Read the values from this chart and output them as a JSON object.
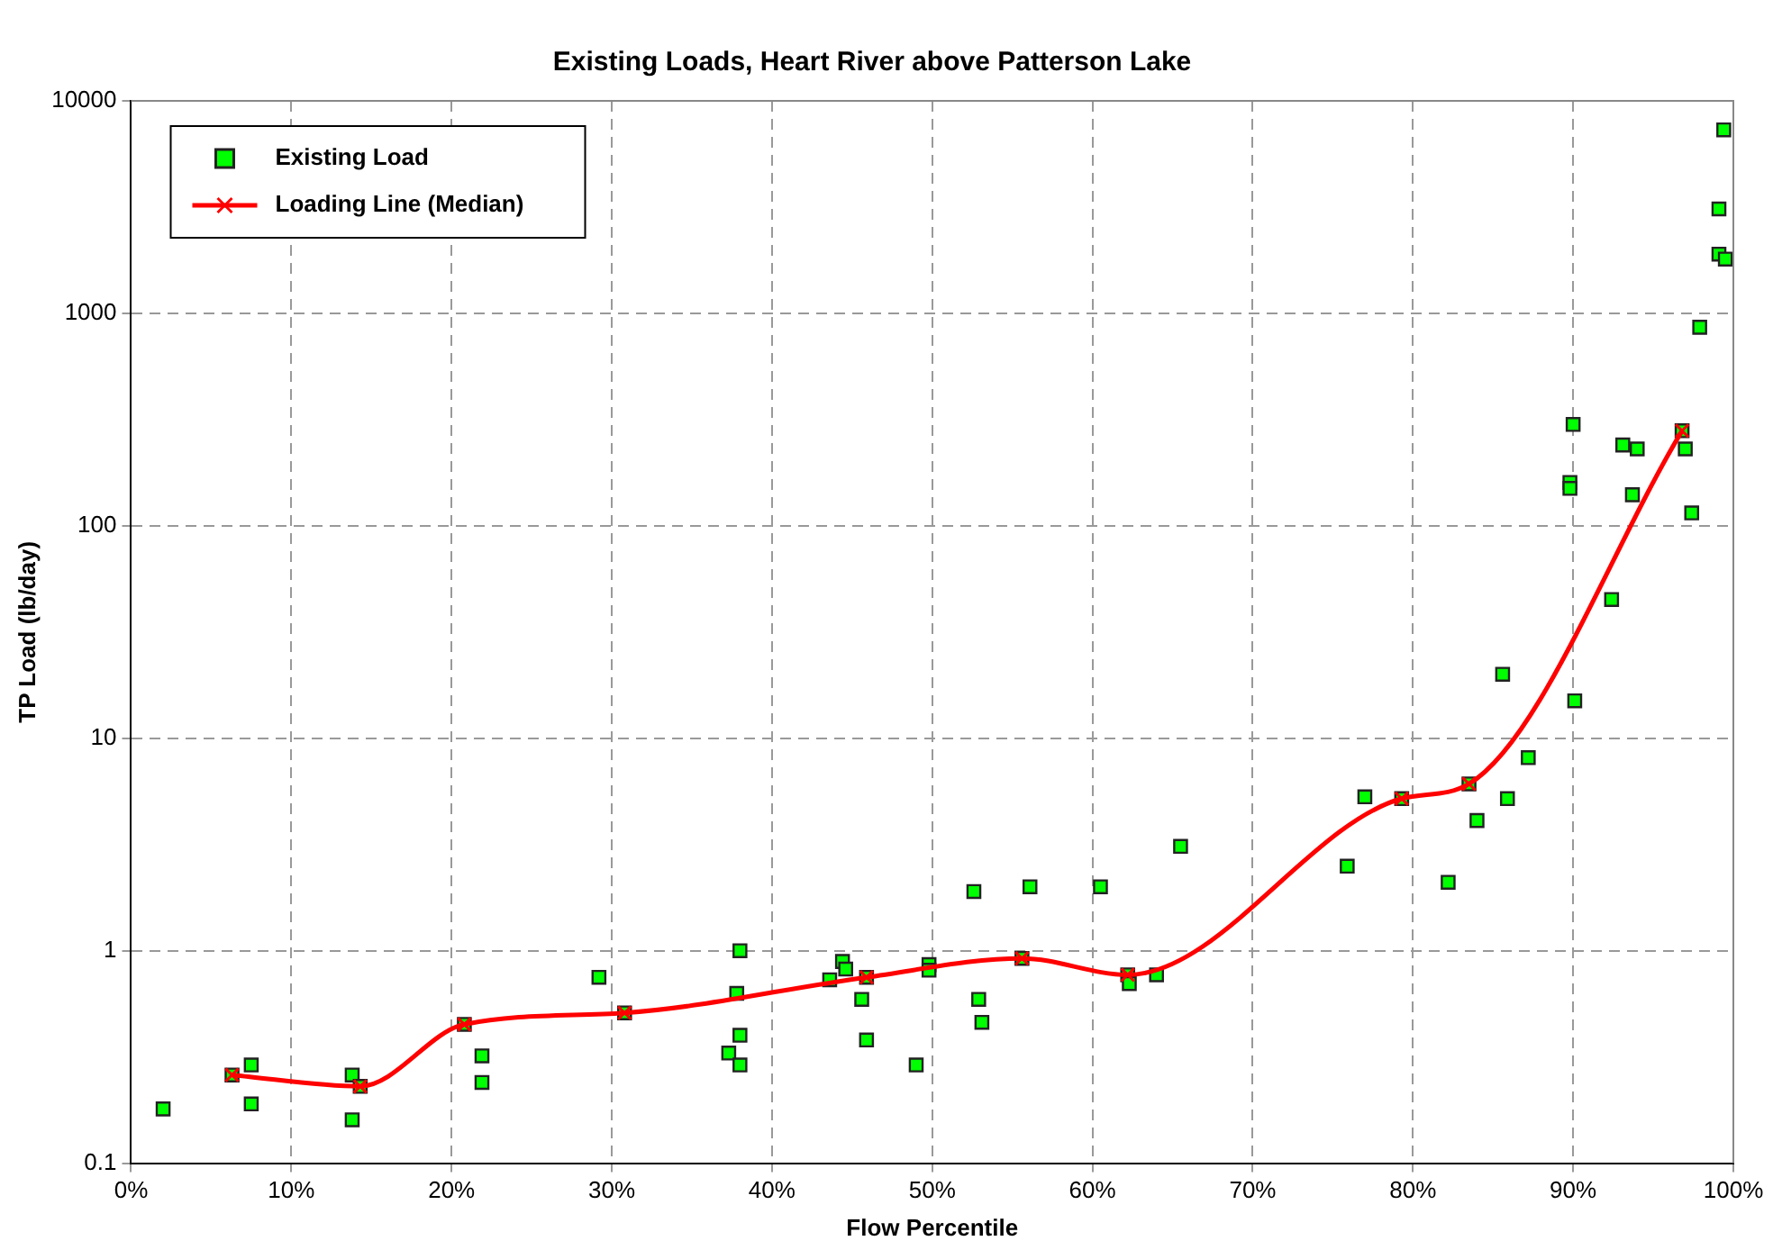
{
  "chart_data": {
    "type": "scatter",
    "title": "Existing Loads, Heart River above Patterson Lake",
    "xlabel": "Flow Percentile",
    "ylabel": "TP Load (lb/day)",
    "log": "y",
    "grid": true,
    "legend": "top left",
    "line_style": "solid",
    "xlim": [
      0,
      100
    ],
    "xticks": [
      {
        "value": 0,
        "label": "0%"
      },
      {
        "value": 10,
        "label": "10%"
      },
      {
        "value": 20,
        "label": "20%"
      },
      {
        "value": 30,
        "label": "30%"
      },
      {
        "value": 40,
        "label": "40%"
      },
      {
        "value": 50,
        "label": "50%"
      },
      {
        "value": 60,
        "label": "60%"
      },
      {
        "value": 70,
        "label": "70%"
      },
      {
        "value": 80,
        "label": "80%"
      },
      {
        "value": 90,
        "label": "90%"
      },
      {
        "value": 100,
        "label": "100%"
      }
    ],
    "ylim": [
      0.1,
      10000
    ],
    "yticks": [
      0.1,
      1,
      10,
      100,
      1000,
      10000
    ],
    "series": [
      {
        "name": "Existing Load",
        "type": "scatter",
        "marker": "square",
        "color": "#00ff00",
        "x": [
          2.0,
          6.3,
          7.5,
          7.5,
          13.8,
          13.8,
          14.3,
          20.8,
          21.9,
          21.9,
          29.2,
          30.8,
          37.3,
          37.8,
          38.0,
          38.0,
          38.0,
          43.6,
          44.4,
          44.6,
          45.6,
          45.9,
          45.9,
          49.0,
          49.8,
          49.8,
          52.6,
          52.9,
          53.1,
          55.6,
          56.1,
          60.5,
          62.2,
          62.3,
          64.0,
          65.5,
          75.9,
          77.0,
          79.3,
          82.2,
          83.5,
          84.0,
          85.6,
          85.9,
          87.2,
          89.8,
          89.8,
          90.0,
          90.1,
          92.4,
          93.1,
          93.7,
          94.0,
          96.8,
          97.0,
          97.4,
          97.9,
          99.1,
          99.1,
          99.4,
          99.5
        ],
        "values": [
          0.18,
          0.26,
          0.29,
          0.19,
          0.26,
          0.16,
          0.23,
          0.45,
          0.32,
          0.24,
          0.75,
          0.51,
          0.33,
          0.63,
          1.0,
          0.4,
          0.29,
          0.73,
          0.89,
          0.82,
          0.59,
          0.75,
          0.38,
          0.29,
          0.86,
          0.81,
          1.9,
          0.59,
          0.46,
          0.92,
          2.0,
          2.0,
          0.77,
          0.7,
          0.77,
          3.1,
          2.5,
          5.3,
          5.2,
          2.1,
          6.1,
          4.1,
          20,
          5.2,
          8.1,
          160,
          150,
          300,
          15,
          45,
          240,
          140,
          230,
          280,
          230,
          115,
          860,
          1900,
          3100,
          7300,
          1800
        ]
      },
      {
        "name": "Loading Line (Median)",
        "type": "line",
        "marker": "cross",
        "color": "#ff0000",
        "x": [
          6.3,
          14.3,
          20.8,
          30.8,
          45.9,
          55.6,
          62.2,
          79.3,
          83.5,
          96.8
        ],
        "values": [
          0.26,
          0.23,
          0.45,
          0.51,
          0.75,
          0.92,
          0.77,
          5.2,
          6.1,
          280
        ]
      }
    ]
  }
}
